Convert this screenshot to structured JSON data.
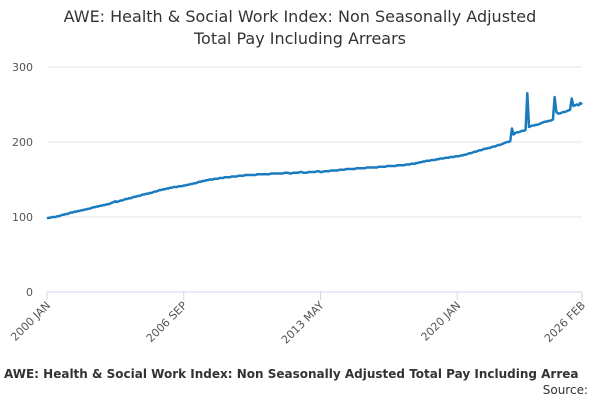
{
  "chart_data": {
    "type": "line",
    "title": [
      "AWE: Health & Social Work Index: Non Seasonally Adjusted",
      "Total Pay Including Arrears"
    ],
    "caption": "AWE: Health & Social Work Index: Non Seasonally Adjusted Total Pay Including Arrea",
    "source": "Source:",
    "color": "#1b7bbf",
    "grid": true,
    "ylim": [
      0,
      300
    ],
    "yticks": [
      0,
      100,
      200,
      300
    ],
    "categories": [
      "2000 JAN",
      null,
      null,
      null,
      null,
      null,
      null,
      null,
      null,
      null,
      null,
      null,
      null,
      null,
      null,
      null,
      null,
      null,
      null,
      null,
      null,
      null,
      null,
      null,
      null,
      null,
      null,
      null,
      null,
      null,
      null,
      null,
      null,
      null,
      null,
      null,
      null,
      null,
      null,
      null,
      null,
      null,
      null,
      null,
      null,
      null,
      null,
      null,
      null,
      null,
      null,
      null,
      null,
      null,
      null,
      null,
      null,
      null,
      null,
      null,
      null,
      null,
      null,
      null,
      null,
      null,
      null,
      null,
      null,
      null,
      null,
      null,
      null,
      null,
      null,
      null,
      null,
      null,
      null,
      null,
      "2006 SEP",
      null,
      null,
      null,
      null,
      null,
      null,
      null,
      null,
      null,
      null,
      null,
      null,
      null,
      null,
      null,
      null,
      null,
      null,
      null,
      null,
      null,
      null,
      null,
      null,
      null,
      null,
      null,
      null,
      null,
      null,
      null,
      null,
      null,
      null,
      null,
      null,
      null,
      null,
      null,
      null,
      null,
      null,
      null,
      null,
      null,
      null,
      null,
      null,
      null,
      null,
      null,
      null,
      null,
      null,
      null,
      null,
      null,
      null,
      null,
      null,
      null,
      null,
      null,
      null,
      null,
      null,
      null,
      null,
      null,
      null,
      null,
      null,
      null,
      null,
      null,
      null,
      null,
      null,
      null,
      "2013 MAY",
      null,
      null,
      null,
      null,
      null,
      null,
      null,
      null,
      null,
      null,
      null,
      null,
      null,
      null,
      null,
      null,
      null,
      null,
      null,
      null,
      null,
      null,
      null,
      null,
      null,
      null,
      null,
      null,
      null,
      null,
      null,
      null,
      null,
      null,
      null,
      null,
      null,
      null,
      null,
      null,
      null,
      null,
      null,
      null,
      null,
      null,
      null,
      null,
      null,
      null,
      null,
      null,
      null,
      null,
      null,
      null,
      null,
      null,
      null,
      null,
      null,
      null,
      null,
      null,
      null,
      null,
      null,
      null,
      null,
      null,
      null,
      null,
      null,
      null,
      null,
      null,
      null,
      null,
      null,
      "2020 JAN",
      null,
      null,
      null,
      null,
      null,
      null,
      null,
      null,
      null,
      null,
      null,
      null,
      null,
      null,
      null,
      null,
      null,
      null,
      null,
      null,
      null,
      null,
      null,
      null,
      null,
      null,
      null,
      null,
      null,
      null,
      null,
      null,
      null,
      null,
      null,
      null,
      null,
      null,
      null,
      null,
      null,
      null,
      null,
      null,
      null,
      null,
      null,
      null,
      null,
      null,
      null,
      null,
      null,
      null,
      null,
      null,
      null,
      null,
      null,
      null,
      null,
      null,
      null,
      null,
      null,
      null,
      null,
      null,
      null,
      null,
      null,
      null,
      "2026 FEB"
    ],
    "values": [
      98,
      99,
      99,
      100,
      100,
      100,
      101,
      101,
      102,
      103,
      103,
      104,
      104,
      105,
      106,
      106,
      107,
      107,
      108,
      108,
      109,
      109,
      110,
      110,
      111,
      111,
      112,
      113,
      113,
      114,
      114,
      115,
      115,
      116,
      116,
      117,
      117,
      118,
      119,
      120,
      121,
      120,
      121,
      122,
      122,
      123,
      124,
      124,
      125,
      125,
      126,
      127,
      127,
      128,
      128,
      129,
      130,
      130,
      131,
      131,
      132,
      132,
      133,
      134,
      134,
      135,
      136,
      136,
      137,
      137,
      138,
      138,
      139,
      139,
      140,
      140,
      140,
      141,
      141,
      141,
      142,
      142,
      143,
      143,
      144,
      144,
      145,
      145,
      146,
      147,
      147,
      148,
      148,
      149,
      149,
      150,
      150,
      150,
      151,
      151,
      151,
      152,
      152,
      152,
      153,
      153,
      153,
      153,
      154,
      154,
      154,
      154,
      155,
      155,
      155,
      155,
      156,
      156,
      156,
      156,
      156,
      156,
      156,
      157,
      157,
      157,
      157,
      157,
      157,
      157,
      157,
      158,
      158,
      158,
      158,
      158,
      158,
      158,
      158,
      159,
      159,
      159,
      158,
      158,
      159,
      159,
      159,
      159,
      160,
      160,
      159,
      159,
      159,
      160,
      160,
      160,
      160,
      160,
      161,
      161,
      160,
      160,
      161,
      161,
      161,
      161,
      162,
      162,
      162,
      162,
      162,
      163,
      163,
      163,
      163,
      164,
      164,
      164,
      164,
      164,
      164,
      165,
      165,
      165,
      165,
      165,
      165,
      166,
      166,
      166,
      166,
      166,
      166,
      166,
      167,
      167,
      167,
      167,
      167,
      168,
      168,
      168,
      168,
      168,
      168,
      169,
      169,
      169,
      169,
      169,
      170,
      170,
      170,
      171,
      171,
      171,
      172,
      172,
      173,
      173,
      174,
      174,
      175,
      175,
      175,
      176,
      176,
      176,
      177,
      177,
      178,
      178,
      178,
      179,
      179,
      179,
      180,
      180,
      180,
      181,
      181,
      181,
      182,
      182,
      183,
      183,
      184,
      185,
      185,
      186,
      187,
      187,
      188,
      189,
      189,
      190,
      191,
      191,
      192,
      192,
      193,
      194,
      194,
      195,
      196,
      196,
      197,
      198,
      199,
      200,
      200,
      201,
      218,
      210,
      212,
      213,
      213,
      214,
      215,
      215,
      216,
      265,
      220,
      221,
      222,
      222,
      223,
      223,
      224,
      225,
      226,
      227,
      227,
      228,
      228,
      229,
      230,
      260,
      240,
      238,
      238,
      239,
      240,
      240,
      241,
      242,
      243,
      258,
      248,
      249,
      250,
      249,
      252,
      250
    ]
  }
}
